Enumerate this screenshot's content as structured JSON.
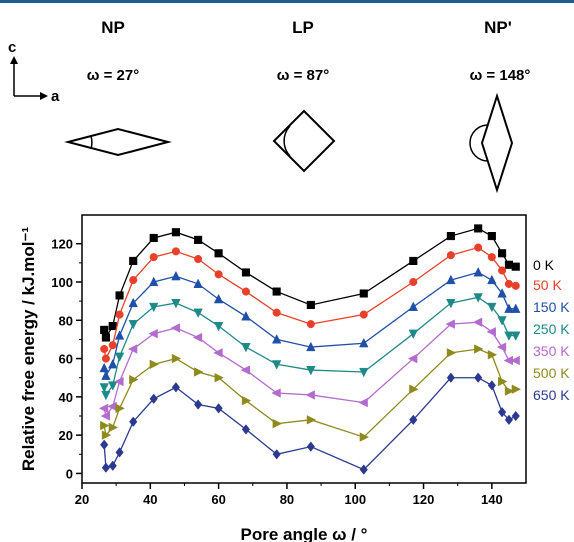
{
  "structures": [
    {
      "name": "NP",
      "omega": "ω = 27°"
    },
    {
      "name": "LP",
      "omega": "ω = 87°"
    },
    {
      "name": "NP'",
      "omega": "ω = 148°"
    }
  ],
  "axes_inset": {
    "c_label": "c",
    "a_label": "a"
  },
  "chart_data": {
    "type": "line",
    "xlabel": "Pore angle ω / °",
    "ylabel": "Relative free energy / kJ.mol⁻¹",
    "xlim": [
      20,
      150
    ],
    "ylim": [
      -5,
      135
    ],
    "xticks": [
      20,
      40,
      60,
      80,
      100,
      120,
      140
    ],
    "yticks": [
      0,
      20,
      40,
      60,
      80,
      100,
      120
    ],
    "legend_position": "right",
    "x": [
      26.5,
      27,
      29,
      31,
      35,
      41,
      47.5,
      54,
      60,
      68,
      77,
      87,
      102.5,
      117,
      128,
      136,
      140,
      143,
      145,
      147
    ],
    "series": [
      {
        "name": "0 K",
        "color": "#000000",
        "marker": "square",
        "values": [
          75,
          71,
          77,
          93,
          111,
          123,
          126,
          122,
          115,
          105,
          95,
          88,
          94,
          111,
          124,
          128,
          124,
          115,
          109,
          108
        ]
      },
      {
        "name": "50 K",
        "color": "#e8402a",
        "marker": "circle",
        "values": [
          65,
          60,
          67,
          83,
          101,
          113,
          116,
          112,
          104,
          95,
          84,
          78,
          83,
          100,
          114,
          118,
          113,
          106,
          99,
          98
        ]
      },
      {
        "name": "150 K",
        "color": "#1f4fa8",
        "marker": "triangle-up",
        "values": [
          55,
          51,
          57,
          72,
          89,
          100,
          103,
          99,
          91,
          82,
          70,
          66,
          68,
          87,
          101,
          105,
          101,
          94,
          86,
          86
        ]
      },
      {
        "name": "250 K",
        "color": "#1e8a87",
        "marker": "triangle-down",
        "values": [
          45,
          41,
          46,
          61,
          78,
          87,
          89,
          84,
          77,
          66,
          57,
          54,
          53,
          73,
          89,
          92,
          87,
          80,
          72,
          72
        ]
      },
      {
        "name": "350 K",
        "color": "#b36bcf",
        "marker": "triangle-left",
        "values": [
          34,
          30,
          35,
          48,
          65,
          73,
          76,
          71,
          63,
          54,
          42,
          41,
          37,
          60,
          78,
          79,
          74,
          66,
          59,
          59
        ]
      },
      {
        "name": "500 K",
        "color": "#8f8a1e",
        "marker": "triangle-right",
        "values": [
          25,
          20,
          24,
          34,
          49,
          57,
          60,
          53,
          50,
          38,
          26,
          28,
          19,
          44,
          63,
          65,
          62,
          48,
          43,
          44
        ]
      },
      {
        "name": "650 K",
        "color": "#2b3a90",
        "marker": "diamond",
        "values": [
          15,
          3,
          4,
          11,
          27,
          39,
          45,
          36,
          34,
          23,
          10,
          14,
          2,
          28,
          50,
          50,
          46,
          32,
          28,
          30
        ]
      }
    ]
  }
}
